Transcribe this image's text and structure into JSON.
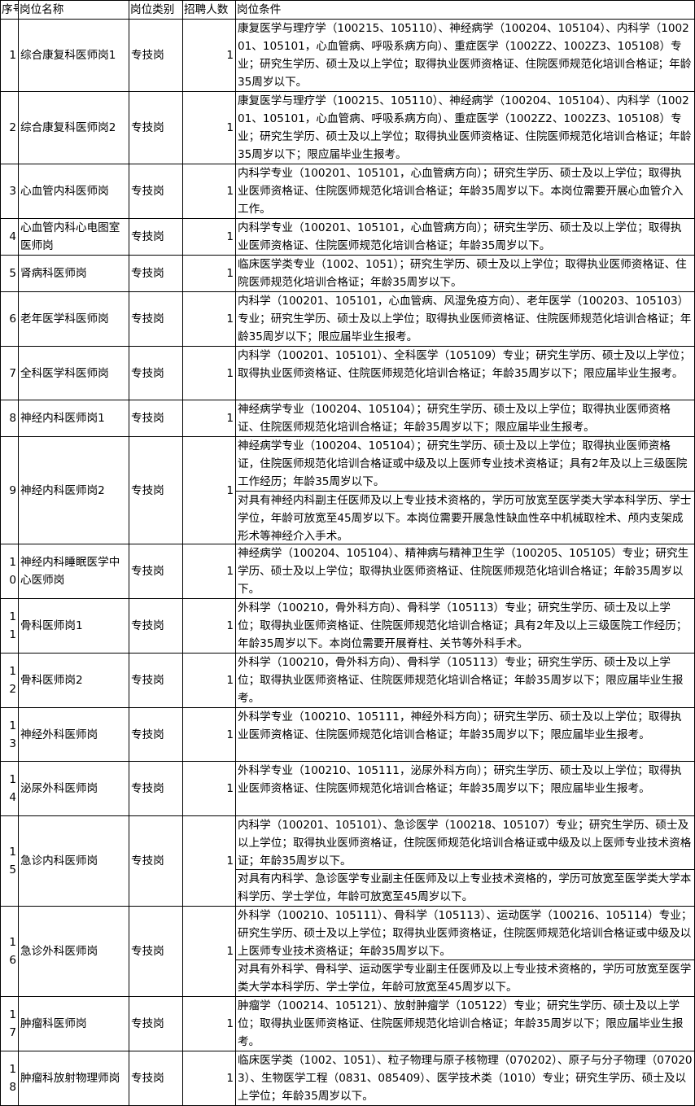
{
  "headers": [
    "序号",
    "岗位名称",
    "岗位类别",
    "招聘人数",
    "岗位条件"
  ],
  "rows": [
    {
      "no": "1",
      "name": "综合康复科医师岗1",
      "type": "专技岗",
      "count": "1",
      "conditions": [
        "康复医学与理疗学（100215、105110）、神经病学（100204、105104）、内科学（100201、105101，心血管病、呼吸系病方向）、重症医学（1002Z2、1002Z3、105108）专业；研究生学历、硕士及以上学位；取得执业医师资格证、住院医师规范化培训合格证；年龄35周岁以下。"
      ]
    },
    {
      "no": "2",
      "name": "综合康复科医师岗2",
      "type": "专技岗",
      "count": "1",
      "conditions": [
        "康复医学与理疗学（100215、105110）、神经病学（100204、105104）、内科学（100201、105101，心血管病、呼吸系病方向）、重症医学（1002Z2、1002Z3、105108）专业；研究生学历、硕士及以上学位；取得执业医师资格证、住院医师规范化培训合格证；年龄35周岁以下；限应届毕业生报考。"
      ]
    },
    {
      "no": "3",
      "name": "心血管内科医师岗",
      "type": "专技岗",
      "count": "1",
      "conditions": [
        "内科学专业（100201、105101，心血管病方向）；研究生学历、硕士及以上学位；取得执业医师资格证、住院医师规范化培训合格证；年龄35周岁以下。本岗位需要开展心血管介入工作。"
      ]
    },
    {
      "no": "4",
      "name": "心血管内科心电图室医师岗",
      "type": "专技岗",
      "count": "1",
      "conditions": [
        "内科学专业（100201、105101，心血管病方向）；研究生学历、硕士及以上学位；取得执业医师资格证、住院医师规范化培训合格证；年龄35周岁以下。"
      ]
    },
    {
      "no": "5",
      "name": "肾病科医师岗",
      "type": "专技岗",
      "count": "1",
      "conditions": [
        "临床医学类专业（1002、1051）；研究生学历、硕士及以上学位；取得执业医师资格证、住院医师规范化培训合格证；年龄35周岁以下。"
      ]
    },
    {
      "no": "6",
      "name": "老年医学科医师岗",
      "type": "专技岗",
      "count": "1",
      "conditions": [
        "内科学（100201、105101，心血管病、风湿免疫方向）、老年医学（100203、105103）专业；研究生学历、硕士及以上学位；取得执业医师资格证、住院医师规范化培训合格证；年龄35周岁以下；限应届毕业生报考。"
      ]
    },
    {
      "no": "7",
      "name": "全科医学科医师岗",
      "type": "专技岗",
      "count": "1",
      "conditions": [
        "内科学（100201、105101）、全科医学（105109）专业；研究生学历、硕士及以上学位；取得执业医师资格证、住院医师规范化培训合格证；年龄35周岁以下；限应届毕业生报考。"
      ]
    },
    {
      "no": "8",
      "name": "神经内科医师岗1",
      "type": "专技岗",
      "count": "1",
      "conditions": [
        "神经病学专业（100204、105104）；研究生学历、硕士及以上学位；取得执业医师资格证、住院医师规范化培训合格证；年龄35周岁以下；限应届毕业生报考。"
      ]
    },
    {
      "no": "9",
      "name": "神经内科医师岗2",
      "type": "专技岗",
      "count": "1",
      "conditions": [
        "神经病学专业（100204、105104）；研究生学历、硕士及以上学位；取得执业医师资格证，住院医师规范化培训合格证或中级及以上医师专业技术资格证；具有2年及以上三级医院工作经历；年龄35周岁以下。",
        "对具有神经内科副主任医师及以上专业技术资格的，学历可放宽至医学类大学本科学历、学士学位，年龄可放宽至45周岁以下。本岗位需要开展急性缺血性卒中机械取栓术、颅内支架成形术等神经介入手术。"
      ]
    },
    {
      "no": "10",
      "name": "神经内科睡眠医学中心医师岗",
      "type": "专技岗",
      "count": "1",
      "conditions": [
        "神经病学（100204、105104）、精神病与精神卫生学（100205、105105）专业；研究生学历、硕士及以上学位；取得执业医师资格证、住院医师规范化培训合格证；年龄35周岁以下。"
      ]
    },
    {
      "no": "11",
      "name": "骨科医师岗1",
      "type": "专技岗",
      "count": "1",
      "conditions": [
        "外科学（100210，骨外科方向）、骨科学（105113）专业；研究生学历、硕士及以上学位；取得执业医师资格证、住院医师规范化培训合格证；具有2年及以上三级医院工作经历；年龄35周岁以下。本岗位需要开展脊柱、关节等外科手术。"
      ]
    },
    {
      "no": "12",
      "name": "骨科医师岗2",
      "type": "专技岗",
      "count": "1",
      "conditions": [
        "外科学（100210，骨外科方向）、骨科学（105113）专业；研究生学历、硕士及以上学位；取得执业医师资格证、住院医师规范化培训合格证；年龄35周岁以下；限应届毕业生报考。"
      ]
    },
    {
      "no": "13",
      "name": "神经外科医师岗",
      "type": "专技岗",
      "count": "1",
      "conditions": [
        "外科学专业（100210、105111，神经外科方向）；研究生学历、硕士及以上学位；取得执业医师资格证、住院医师规范化培训合格证；年龄35周岁以下；限应届毕业生报考。"
      ]
    },
    {
      "no": "14",
      "name": "泌尿外科医师岗",
      "type": "专技岗",
      "count": "1",
      "conditions": [
        "外科学专业（100210、105111，泌尿外科方向）；研究生学历、硕士及以上学位；取得执业医师资格证、住院医师规范化培训合格证；年龄35周岁以下；限应届毕业生报考。"
      ]
    },
    {
      "no": "15",
      "name": "急诊内科医师岗",
      "type": "专技岗",
      "count": "1",
      "conditions": [
        "内科学（100201、105101）、急诊医学（100218、105107）专业；研究生学历、硕士及以上学位；取得执业医师资格证，住院医师规范化培训合格证或中级及以上医师专业技术资格证；年龄35周岁以下。",
        "对具有内科学、急诊医学专业副主任医师及以上专业技术资格的，学历可放宽至医学类大学本科学历、学士学位，年龄可放宽至45周岁以下。"
      ]
    },
    {
      "no": "16",
      "name": "急诊外科医师岗",
      "type": "专技岗",
      "count": "1",
      "conditions": [
        "外科学（100210、105111）、骨科学（105113）、运动医学（100216、105114）专业；研究生学历、硕士及以上学位；取得执业医师资格证，住院医师规范化培训合格证或中级及以上医师专业技术资格证；年龄35周岁以下。",
        "对具有外科学、骨科学、运动医学专业副主任医师及以上专业技术资格的，学历可放宽至医学类大学本科学历、学士学位，年龄可放宽至45周岁以下。"
      ]
    },
    {
      "no": "17",
      "name": "肿瘤科医师岗",
      "type": "专技岗",
      "count": "1",
      "conditions": [
        "肿瘤学（100214、105121）、放射肿瘤学（105122）专业；研究生学历、硕士及以上学位；取得执业医师资格证、住院医师规范化培训合格证；年龄35周岁以下；限应届毕业生报考。"
      ]
    },
    {
      "no": "18",
      "name": "肿瘤科放射物理师岗",
      "type": "专技岗",
      "count": "1",
      "conditions": [
        "临床医学类（1002、1051）、粒子物理与原子核物理（070202）、原子与分子物理（070203）、生物医学工程（0831、085409）、医学技术类（1010）专业；研究生学历、硕士及以上学位；年龄35周岁以下。"
      ]
    }
  ]
}
